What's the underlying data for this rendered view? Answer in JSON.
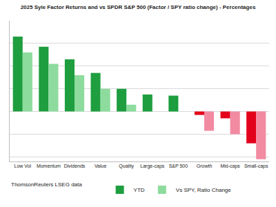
{
  "chart_data": {
    "type": "bar",
    "title": "2025 Syle Factor Returns and vs SPDR S&P 500 (Factor / SPY ratio change) - Percentages",
    "categories": [
      "Low Vol",
      "Momentum",
      "Dividends",
      "Value",
      "Quality",
      "Large-caps",
      "S&P 500",
      "Growth",
      "Mid-caps",
      "Small-caps"
    ],
    "series": [
      {
        "name": "YTD",
        "values": [
          6.6,
          5.7,
          4.6,
          3.4,
          2.0,
          1.5,
          1.4,
          -0.3,
          -0.6,
          -2.8
        ],
        "colors": [
          "#1e9e3f",
          "#1e9e3f",
          "#1e9e3f",
          "#1e9e3f",
          "#1e9e3f",
          "#1e9e3f",
          "#1e9e3f",
          "#e3001b",
          "#e3001b",
          "#e3001b"
        ]
      },
      {
        "name": "Vs SPY, Ratio Change",
        "values": [
          5.2,
          4.2,
          3.2,
          2.0,
          0.6,
          null,
          null,
          -1.7,
          -2.0,
          -4.2
        ],
        "colors": [
          "#8ddc9e",
          "#8ddc9e",
          "#8ddc9e",
          "#8ddc9e",
          "#8ddc9e",
          "#8ddc9e",
          "#8ddc9e",
          "#f28aa2",
          "#f28aa2",
          "#f28aa2"
        ]
      }
    ],
    "ylim": [
      -4.4,
      8
    ],
    "yticks": [
      -4,
      -2,
      0,
      2,
      4,
      6,
      8
    ],
    "grid": true,
    "tick_labels": "x",
    "legend": "bottom",
    "annotations": [
      "ThomsonReuters LSEG data"
    ]
  }
}
